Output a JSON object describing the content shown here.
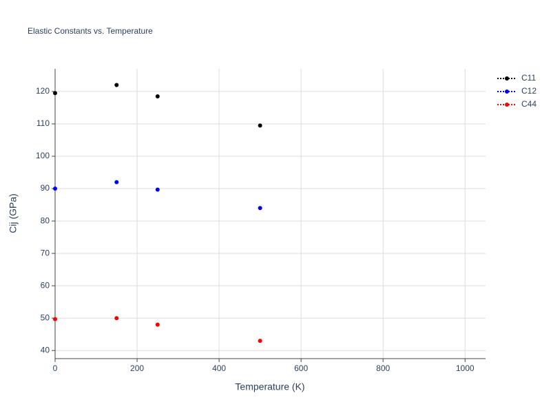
{
  "chart_data": {
    "type": "scatter",
    "title": "Elastic Constants vs. Temperature",
    "x_label": "Temperature (K)",
    "y_label": "Cij (GPa)",
    "x": [
      0,
      150,
      250,
      500
    ],
    "series": [
      {
        "name": "C11",
        "color": "#000000",
        "values": [
          119.5,
          122,
          118.5,
          109.5
        ]
      },
      {
        "name": "C12",
        "color": "#0000ff",
        "values": [
          90,
          92,
          89.7,
          84
        ]
      },
      {
        "name": "C44",
        "color": "#ff0000",
        "values": [
          49.7,
          50,
          48,
          43
        ]
      }
    ],
    "xlim": [
      0,
      1050
    ],
    "xticks": [
      0,
      200,
      400,
      600,
      800,
      1000
    ],
    "ylim": [
      37.5,
      127
    ],
    "yticks": [
      40,
      50,
      60,
      70,
      80,
      90,
      100,
      110,
      120
    ],
    "grid": true
  }
}
